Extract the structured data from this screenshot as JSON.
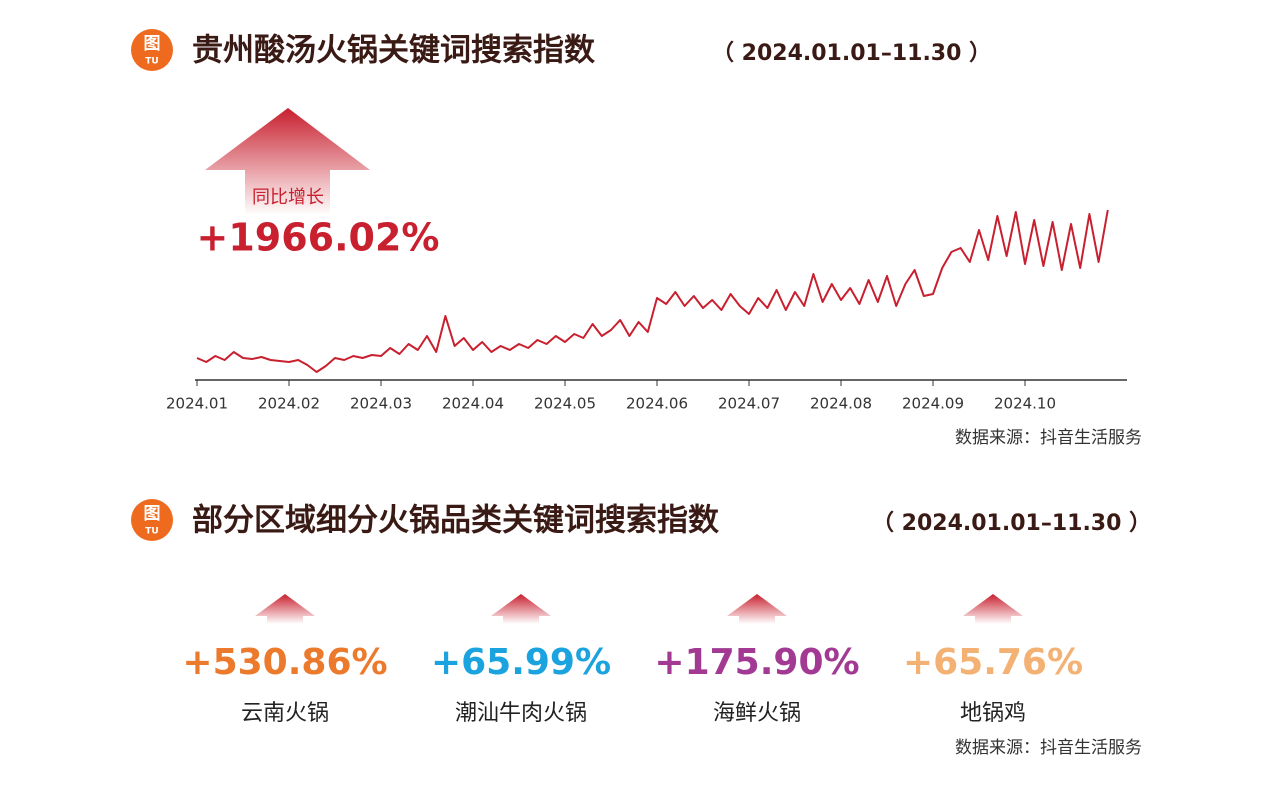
{
  "badge": {
    "char": "图",
    "sub": "TU"
  },
  "section1": {
    "title": "贵州酸汤火锅关键词搜索指数",
    "range": "（ 2024.01.01–11.30 ）",
    "growth_label": "同比增长",
    "growth_value": "+1966.02%",
    "source": "数据来源：抖音生活服务"
  },
  "chart_data": {
    "type": "line",
    "color": "#c8202f",
    "categories": [
      "2024.01",
      null,
      null,
      null,
      null,
      null,
      null,
      null,
      null,
      null,
      "2024.02",
      null,
      null,
      null,
      null,
      null,
      null,
      null,
      null,
      null,
      "2024.03",
      null,
      null,
      null,
      null,
      null,
      null,
      null,
      null,
      null,
      "2024.04",
      null,
      null,
      null,
      null,
      null,
      null,
      null,
      null,
      null,
      "2024.05",
      null,
      null,
      null,
      null,
      null,
      null,
      null,
      null,
      null,
      "2024.06",
      null,
      null,
      null,
      null,
      null,
      null,
      null,
      null,
      null,
      "2024.07",
      null,
      null,
      null,
      null,
      null,
      null,
      null,
      null,
      null,
      "2024.08",
      null,
      null,
      null,
      null,
      null,
      null,
      null,
      null,
      null,
      "2024.09",
      null,
      null,
      null,
      null,
      null,
      null,
      null,
      null,
      null,
      "2024.10",
      null,
      null,
      null,
      null,
      null,
      null,
      null,
      null,
      null
    ],
    "values": [
      22,
      18,
      24,
      20,
      28,
      22,
      21,
      23,
      20,
      19,
      18,
      20,
      15,
      8,
      14,
      22,
      20,
      24,
      22,
      25,
      24,
      32,
      26,
      36,
      30,
      44,
      28,
      64,
      34,
      42,
      30,
      38,
      28,
      34,
      30,
      36,
      32,
      40,
      36,
      44,
      38,
      46,
      42,
      56,
      44,
      50,
      60,
      44,
      58,
      48,
      82,
      76,
      88,
      74,
      84,
      72,
      80,
      70,
      86,
      74,
      66,
      82,
      72,
      90,
      70,
      88,
      74,
      106,
      78,
      96,
      80,
      92,
      76,
      100,
      78,
      104,
      74,
      96,
      110,
      84,
      86,
      112,
      128,
      132,
      118,
      150,
      120,
      164,
      124,
      168,
      116,
      160,
      114,
      158,
      110,
      156,
      112,
      166,
      118,
      170
    ],
    "ylim": [
      0,
      200
    ]
  },
  "section2": {
    "title": "部分区域细分火锅品类关键词搜索指数",
    "range": "（ 2024.01.01–11.30 ）",
    "items": [
      {
        "value": "+530.86%",
        "label": "云南火锅",
        "color": "#ec7a2c"
      },
      {
        "value": "+65.99%",
        "label": "潮汕牛肉火锅",
        "color": "#1aa3de"
      },
      {
        "value": "+175.90%",
        "label": "海鲜火锅",
        "color": "#a23a93"
      },
      {
        "value": "+65.76%",
        "label": "地锅鸡",
        "color": "#f3b274"
      }
    ],
    "source": "数据来源：抖音生活服务"
  }
}
